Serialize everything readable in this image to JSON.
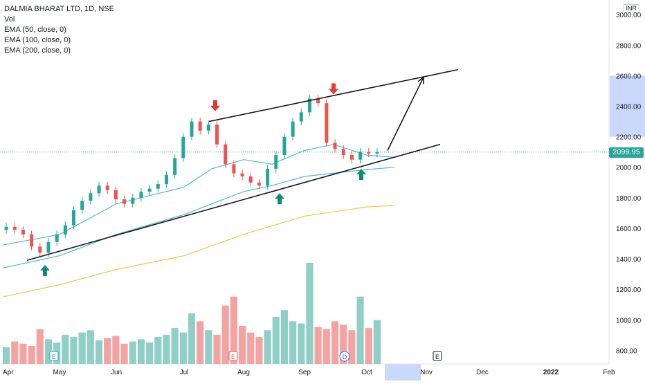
{
  "legend": {
    "title": "DALMIA BHARAT LTD, 1D, NSE",
    "vol": "Vol",
    "ema50": "EMA (50, close, 0)",
    "ema100": "EMA (100, close, 0)",
    "ema200": "EMA (200, close, 0)"
  },
  "currency": "INR",
  "current_price_label": "2099.95",
  "colors": {
    "up": "#26a69a",
    "down": "#ef5350",
    "vol_up": "#8fcfc8",
    "vol_down": "#f3a3a1",
    "ema50": "#4bb8d3",
    "ema100": "#4bb8d3",
    "ema200": "#f5c542",
    "arrow_up": "#138a78",
    "arrow_down": "#e53935",
    "highlight": "#c9d8fb"
  },
  "event_markers": [
    "E",
    "E",
    "D",
    "E"
  ],
  "chart_data": {
    "type": "line",
    "title": "DALMIA BHARAT LTD, 1D, NSE",
    "xlabel": "",
    "ylabel": "",
    "x_ticks": [
      "Apr",
      "May",
      "Jun",
      "Jul",
      "Aug",
      "Sep",
      "Oct",
      "Nov",
      "Dec",
      "2022",
      "Feb"
    ],
    "y_ticks": [
      "800.00",
      "1000.00",
      "1200.00",
      "1400.00",
      "1600.00",
      "1800.00",
      "2000.00",
      "2200.00",
      "2400.00",
      "2600.00",
      "2800.00",
      "3000.00"
    ],
    "ylim": [
      720,
      3060
    ],
    "current_price": 2099.95,
    "price_series": {
      "name": "DALMIA BHARAT LTD",
      "points": [
        [
          "Apr",
          1610
        ],
        [
          "Apr",
          1590
        ],
        [
          "Apr",
          1560
        ],
        [
          "May",
          1480
        ],
        [
          "May",
          1440
        ],
        [
          "May",
          1510
        ],
        [
          "May",
          1560
        ],
        [
          "May",
          1620
        ],
        [
          "May",
          1720
        ],
        [
          "May",
          1780
        ],
        [
          "Jun",
          1830
        ],
        [
          "Jun",
          1880
        ],
        [
          "Jun",
          1850
        ],
        [
          "Jun",
          1790
        ],
        [
          "Jun",
          1760
        ],
        [
          "Jun",
          1800
        ],
        [
          "Jun",
          1840
        ],
        [
          "Jun",
          1860
        ],
        [
          "Jun",
          1890
        ],
        [
          "Jul",
          1950
        ],
        [
          "Jul",
          2060
        ],
        [
          "Jul",
          2200
        ],
        [
          "Jul",
          2300
        ],
        [
          "Jul",
          2240
        ],
        [
          "Jul",
          2280
        ],
        [
          "Jul",
          2150
        ],
        [
          "Aug",
          2020
        ],
        [
          "Aug",
          1960
        ],
        [
          "Aug",
          1940
        ],
        [
          "Aug",
          1900
        ],
        [
          "Aug",
          1880
        ],
        [
          "Aug",
          1990
        ],
        [
          "Aug",
          2080
        ],
        [
          "Sep",
          2200
        ],
        [
          "Sep",
          2300
        ],
        [
          "Sep",
          2360
        ],
        [
          "Sep",
          2450
        ],
        [
          "Sep",
          2420
        ],
        [
          "Sep",
          2160
        ],
        [
          "Sep",
          2120
        ],
        [
          "Oct",
          2080
        ],
        [
          "Oct",
          2050
        ],
        [
          "Oct",
          2100
        ],
        [
          "Oct",
          2090
        ],
        [
          "Oct",
          2100
        ]
      ]
    },
    "ema50": [
      [
        "Apr",
        1490
      ],
      [
        "May",
        1560
      ],
      [
        "Jun",
        1760
      ],
      [
        "Jul",
        1870
      ],
      [
        "Jul",
        1990
      ],
      [
        "Aug",
        2050
      ],
      [
        "Aug",
        2020
      ],
      [
        "Sep",
        2110
      ],
      [
        "Sep",
        2150
      ],
      [
        "Oct",
        2080
      ],
      [
        "Oct",
        2065
      ]
    ],
    "ema100": [
      [
        "Apr",
        1340
      ],
      [
        "May",
        1420
      ],
      [
        "Jun",
        1560
      ],
      [
        "Jul",
        1690
      ],
      [
        "Aug",
        1840
      ],
      [
        "Aug",
        1880
      ],
      [
        "Sep",
        1940
      ],
      [
        "Oct",
        1985
      ],
      [
        "Oct",
        2000
      ]
    ],
    "ema200": [
      [
        "Apr",
        1150
      ],
      [
        "May",
        1230
      ],
      [
        "Jun",
        1330
      ],
      [
        "Jul",
        1420
      ],
      [
        "Aug",
        1560
      ],
      [
        "Sep",
        1680
      ],
      [
        "Oct",
        1740
      ],
      [
        "Oct",
        1750
      ]
    ],
    "volume_series": {
      "name": "Vol",
      "values": [
        150,
        200,
        180,
        160,
        310,
        220,
        190,
        260,
        240,
        280,
        300,
        210,
        230,
        250,
        180,
        200,
        220,
        190,
        240,
        260,
        320,
        280,
        450,
        380,
        300,
        260,
        520,
        600,
        340,
        280,
        240,
        300,
        420,
        480,
        380,
        360,
        900,
        330,
        310,
        380,
        350,
        300,
        600,
        320,
        390
      ]
    },
    "trendlines": [
      {
        "name": "upper channel",
        "from": [
          "Jul",
          2300
        ],
        "to": [
          "Nov",
          2640
        ]
      },
      {
        "name": "lower channel",
        "from": [
          "Apr",
          1390
        ],
        "to": [
          "Oct",
          2150
        ]
      },
      {
        "name": "projection",
        "from": [
          "Oct",
          2110
        ],
        "to": [
          "Oct",
          2590
        ]
      }
    ],
    "annotations": [
      {
        "type": "arrow-down",
        "x": "Jul",
        "y": 2440
      },
      {
        "type": "arrow-down",
        "x": "Sep",
        "y": 2550
      },
      {
        "type": "arrow-up",
        "x": "May",
        "y": 1360
      },
      {
        "type": "arrow-up",
        "x": "Aug",
        "y": 1830
      },
      {
        "type": "arrow-up",
        "x": "Oct",
        "y": 1990
      }
    ]
  }
}
